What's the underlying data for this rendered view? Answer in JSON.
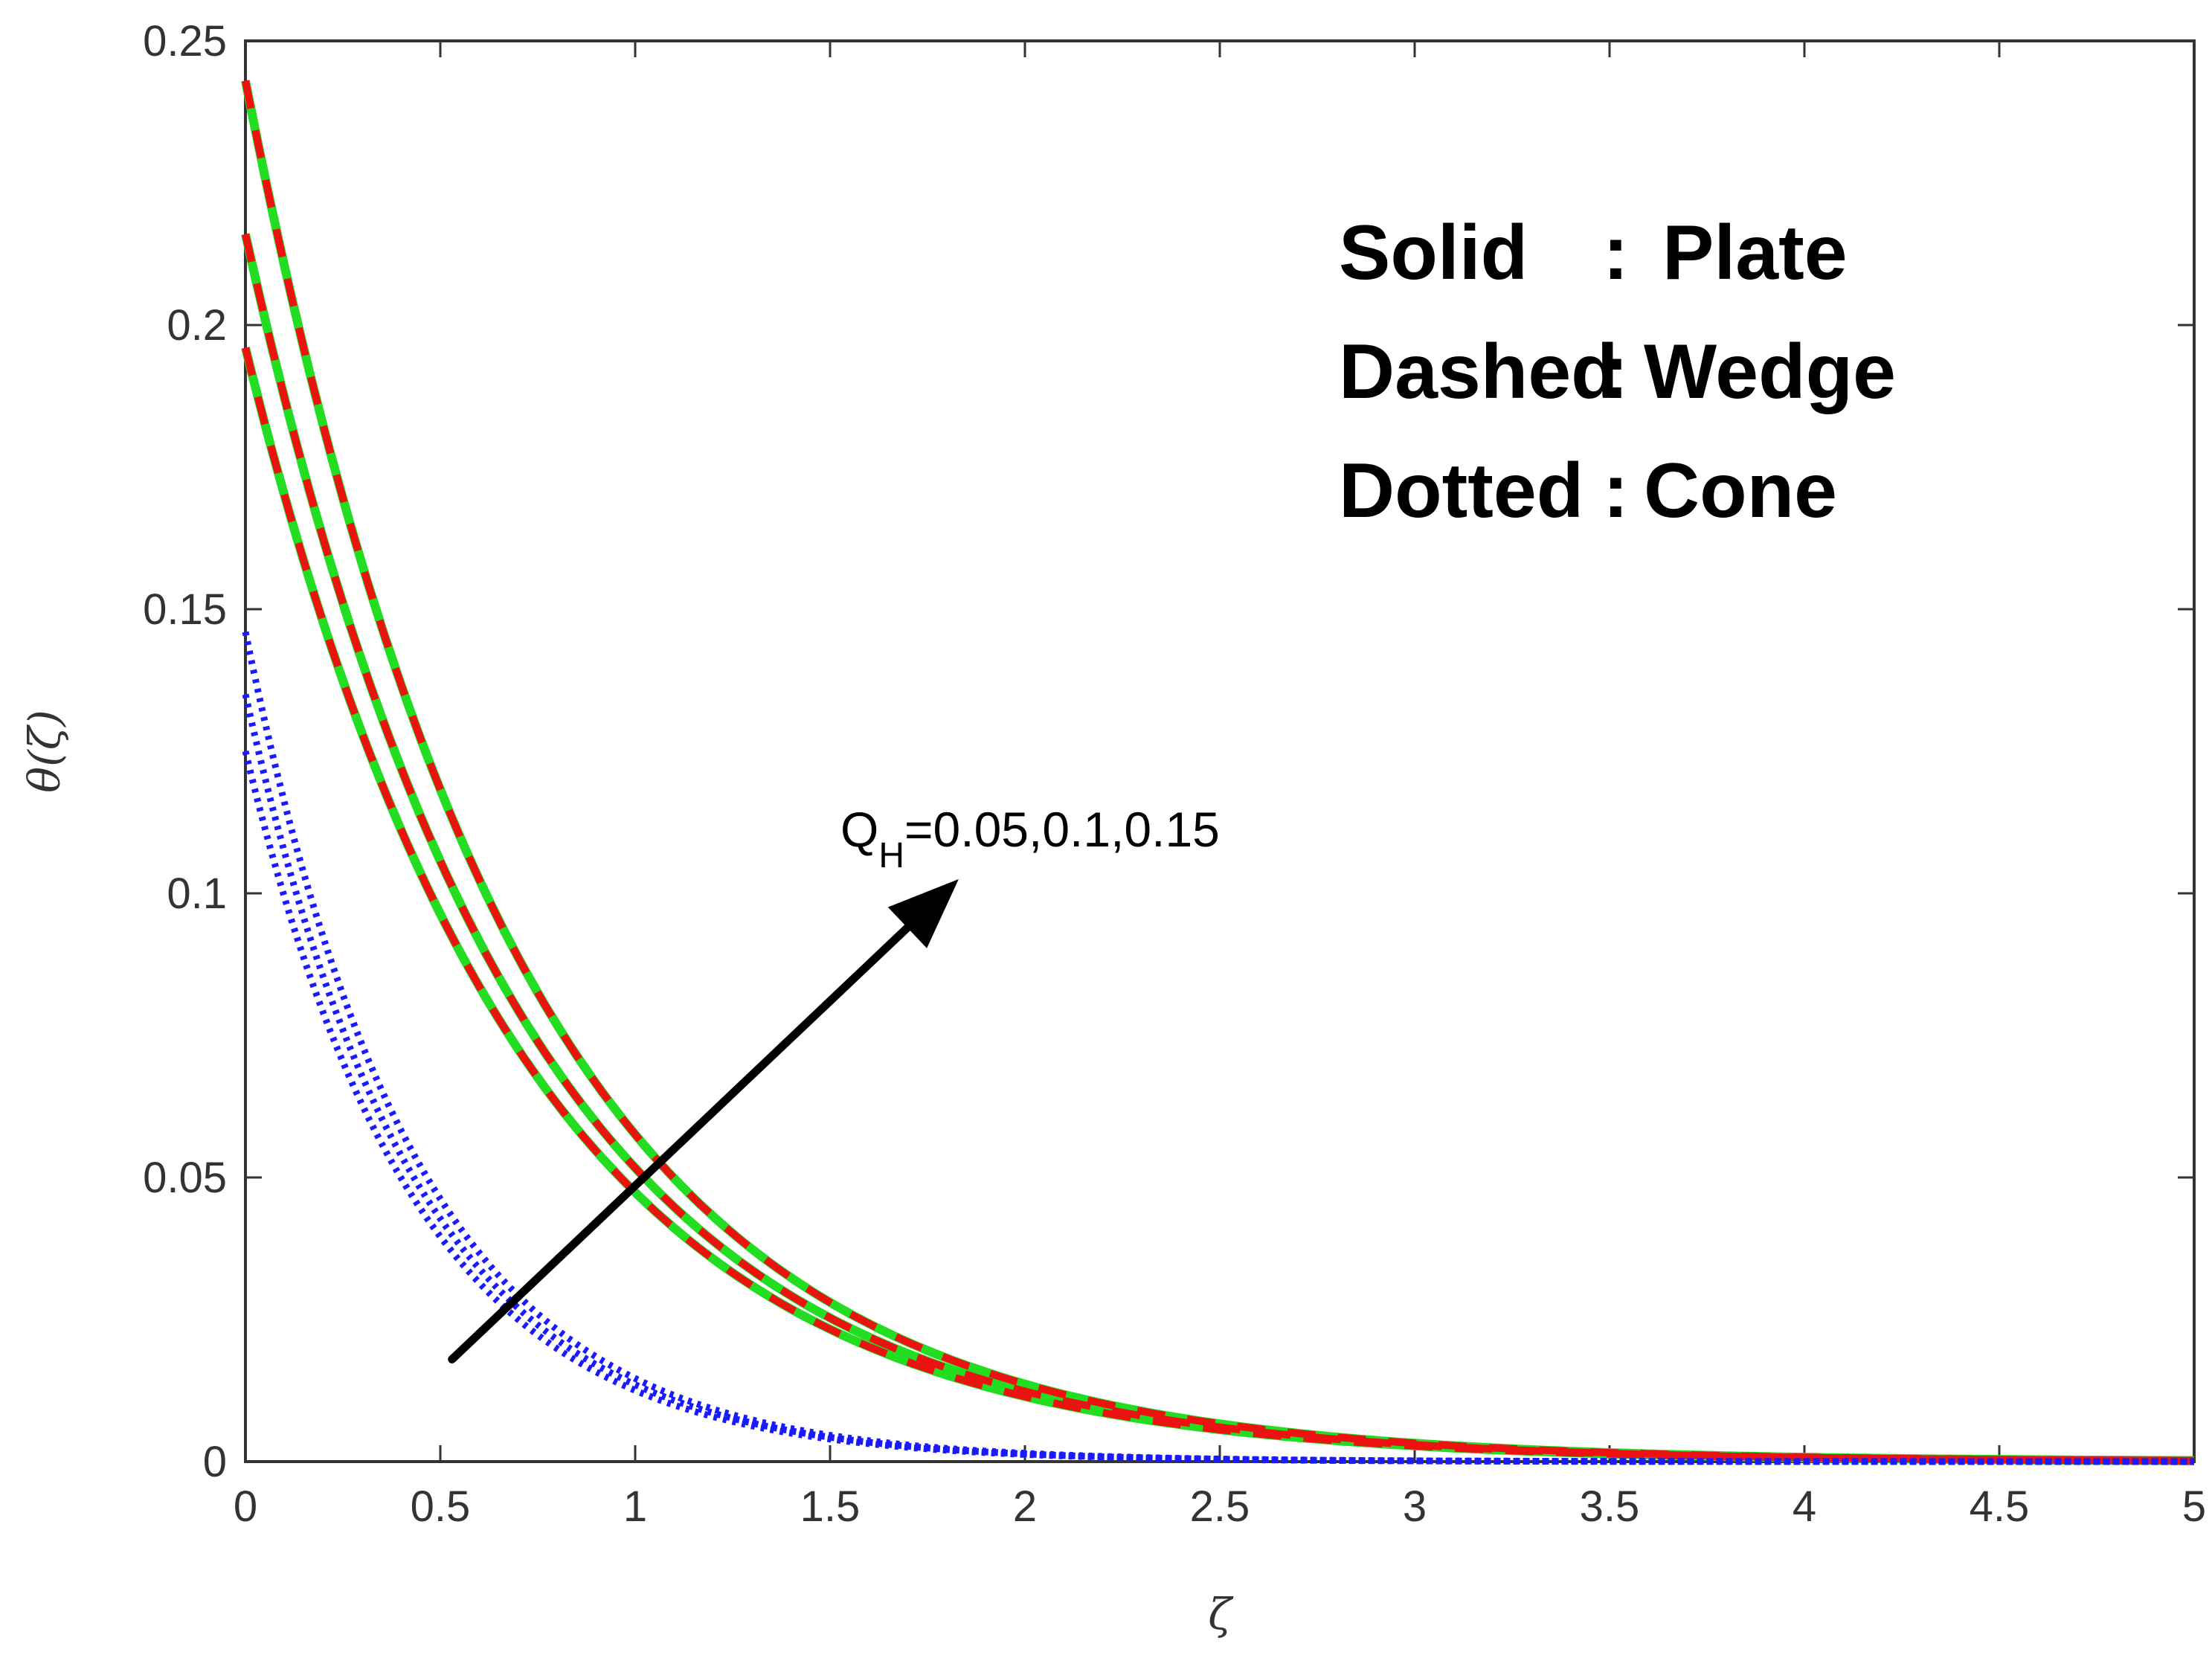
{
  "chart_data": {
    "type": "line",
    "title": "",
    "xlabel": "ζ",
    "ylabel": "θ(ζ)",
    "xlim": [
      0,
      5
    ],
    "ylim": [
      0,
      0.25
    ],
    "x_ticks": [
      "0",
      "0.5",
      "1",
      "1.5",
      "2",
      "2.5",
      "3",
      "3.5",
      "4",
      "4.5",
      "5"
    ],
    "y_ticks": [
      "0",
      "0.05",
      "0.1",
      "0.15",
      "0.2",
      "0.25"
    ],
    "grid": false,
    "legend_position": "top-right",
    "legend": [
      {
        "style": "Solid",
        "sep": ":",
        "geometry": "Plate"
      },
      {
        "style": "Dashed",
        "sep": ":",
        "geometry": "Wedge"
      },
      {
        "style": "Dotted",
        "sep": ":",
        "geometry": "Cone"
      }
    ],
    "annotation": {
      "label_main": "Q",
      "label_sub": "H",
      "label_values": "=0.05,0.1,0.15",
      "arrow_from": [
        0.53,
        0.018
      ],
      "arrow_to": [
        1.83,
        0.1025
      ]
    },
    "colors": {
      "plate": "#22dd22",
      "wedge": "#ee1111",
      "cone": "#1a1aff",
      "axis": "#333333",
      "arrow": "#000000"
    },
    "series": [
      {
        "geometry": "Plate",
        "style": "solid",
        "QH": 0.05,
        "y0": 0.196,
        "decay": 1.42
      },
      {
        "geometry": "Plate",
        "style": "solid",
        "QH": 0.1,
        "y0": 0.216,
        "decay": 1.43
      },
      {
        "geometry": "Plate",
        "style": "solid",
        "QH": 0.15,
        "y0": 0.243,
        "decay": 1.44
      },
      {
        "geometry": "Wedge",
        "style": "dashed",
        "QH": 0.05,
        "y0": 0.196,
        "decay": 1.42
      },
      {
        "geometry": "Wedge",
        "style": "dashed",
        "QH": 0.1,
        "y0": 0.216,
        "decay": 1.43
      },
      {
        "geometry": "Wedge",
        "style": "dashed",
        "QH": 0.15,
        "y0": 0.243,
        "decay": 1.44
      },
      {
        "geometry": "Cone",
        "style": "dotted",
        "QH": 0.05,
        "y0": 0.125,
        "decay": 2.3
      },
      {
        "geometry": "Cone",
        "style": "dotted",
        "QH": 0.1,
        "y0": 0.135,
        "decay": 2.3
      },
      {
        "geometry": "Cone",
        "style": "dotted",
        "QH": 0.15,
        "y0": 0.146,
        "decay": 2.3
      }
    ]
  }
}
